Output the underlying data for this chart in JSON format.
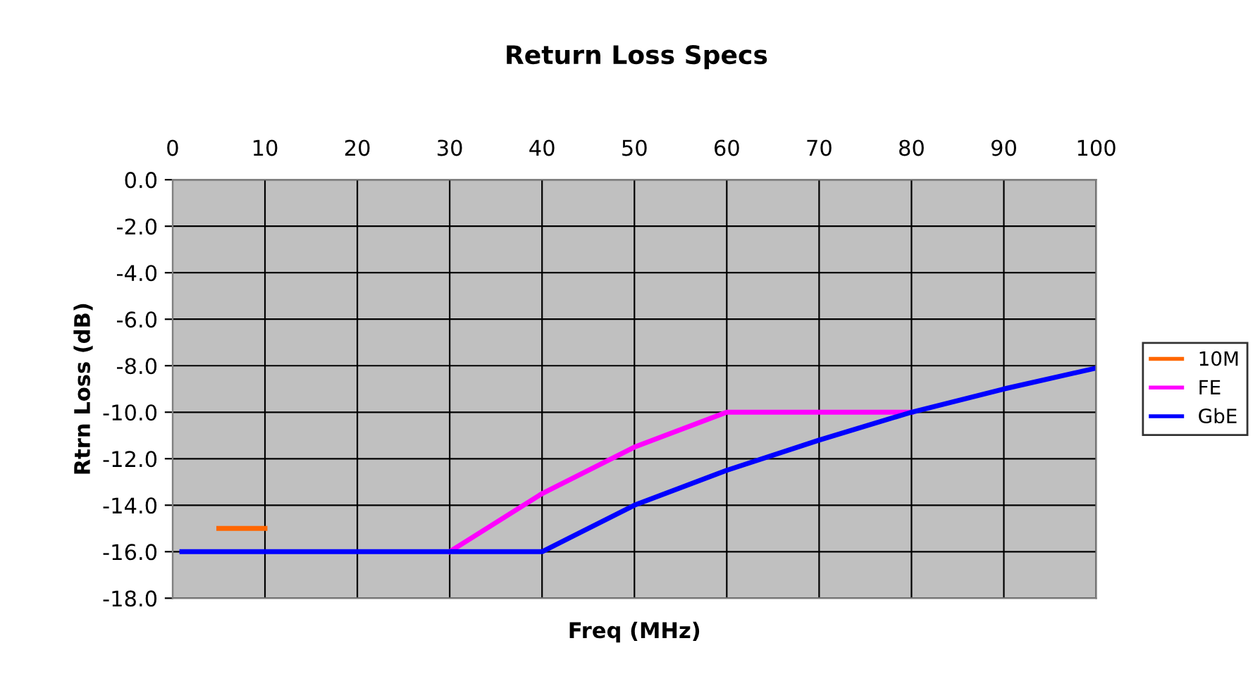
{
  "chart_data": {
    "type": "line",
    "title": "Return Loss Specs",
    "xlabel": "Freq (MHz)",
    "ylabel": "Rtrn Loss (dB)",
    "xlim": [
      0,
      100
    ],
    "xticks": [
      0,
      10,
      20,
      30,
      40,
      50,
      60,
      70,
      80,
      90,
      100
    ],
    "ylim": [
      -18,
      0
    ],
    "yticks": [
      {
        "value": -18,
        "label": "-18.0"
      },
      {
        "value": -16,
        "label": "-16.0"
      },
      {
        "value": -14,
        "label": "-14.0"
      },
      {
        "value": -12,
        "label": "-12.0"
      },
      {
        "value": -10,
        "label": "-10.0"
      },
      {
        "value": -8,
        "label": "-8.0"
      },
      {
        "value": -6,
        "label": "-6.0"
      },
      {
        "value": -4,
        "label": "-4.0"
      },
      {
        "value": -2,
        "label": "-2.0"
      },
      {
        "value": 0,
        "label": "0.0"
      }
    ],
    "grid": true,
    "legend": "right",
    "marker": "none",
    "line_style": "solid",
    "series": [
      {
        "name": "10M",
        "color": "#ff6600",
        "x": [
          5,
          10
        ],
        "values": [
          -15,
          -15
        ]
      },
      {
        "name": "FE",
        "color": "#ff00ff",
        "x": [
          30,
          40,
          50,
          60,
          80
        ],
        "values": [
          -16,
          -13.5,
          -11.5,
          -10,
          -10
        ]
      },
      {
        "name": "GbE",
        "color": "#0000ff",
        "x": [
          1,
          40,
          50,
          60,
          70,
          80,
          90,
          100
        ],
        "values": [
          -16,
          -16,
          -14,
          -12.5,
          -11.2,
          -10,
          -9,
          -8.1
        ]
      }
    ]
  }
}
